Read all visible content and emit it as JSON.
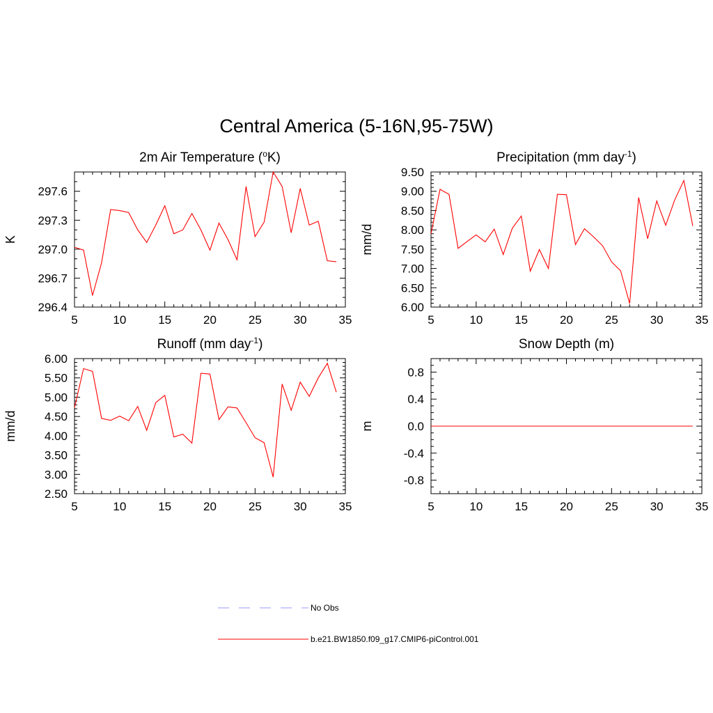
{
  "figure_title": "Central America (5-16N,95-75W)",
  "colors": {
    "model": "#ff0000",
    "obs": "#9999ff"
  },
  "legend": {
    "obs_label": "No Obs",
    "model_label": "b.e21.BW1850.f09_g17.CMIP6-piControl.001"
  },
  "chart_data": [
    {
      "type": "line",
      "title": "2m Air Temperature (",
      "title_sup": "o",
      "title_end": "K)",
      "ylabel": "K",
      "xlim": [
        5,
        35
      ],
      "ylim": [
        296.4,
        297.8
      ],
      "xticks": [
        5,
        10,
        15,
        20,
        25,
        30,
        35
      ],
      "xtick_labels": [
        "5",
        "10",
        "15",
        "20",
        "25",
        "30",
        "35"
      ],
      "yticks": [
        296.4,
        296.7,
        297.0,
        297.3,
        297.6
      ],
      "ytick_labels": [
        "296.4",
        "296.7",
        "297.0",
        "297.3",
        "297.6"
      ],
      "yminor": 0.1,
      "x": [
        5,
        6,
        7,
        8,
        9,
        10,
        11,
        12,
        13,
        14,
        15,
        16,
        17,
        18,
        19,
        20,
        21,
        22,
        23,
        24,
        25,
        26,
        27,
        28,
        29,
        30,
        31,
        32,
        33,
        34
      ],
      "series": [
        {
          "name": "b.e21.BW1850.f09_g17.CMIP6-piControl.001",
          "values": [
            297.02,
            296.99,
            296.52,
            296.86,
            297.41,
            297.4,
            297.38,
            297.2,
            297.07,
            297.25,
            297.45,
            297.16,
            297.2,
            297.37,
            297.2,
            296.99,
            297.27,
            297.1,
            296.89,
            297.65,
            297.13,
            297.28,
            297.8,
            297.65,
            297.17,
            297.63,
            297.25,
            297.29,
            296.88,
            296.87
          ]
        }
      ]
    },
    {
      "type": "line",
      "title": "Precipitation (mm day",
      "title_sup": "-1",
      "title_end": ")",
      "ylabel": "mm/d",
      "xlim": [
        5,
        35
      ],
      "ylim": [
        6.0,
        9.5
      ],
      "xticks": [
        5,
        10,
        15,
        20,
        25,
        30,
        35
      ],
      "xtick_labels": [
        "5",
        "10",
        "15",
        "20",
        "25",
        "30",
        "35"
      ],
      "yticks": [
        6.0,
        6.5,
        7.0,
        7.5,
        8.0,
        8.5,
        9.0,
        9.5
      ],
      "ytick_labels": [
        "6.00",
        "6.50",
        "7.00",
        "7.50",
        "8.00",
        "8.50",
        "9.00",
        "9.50"
      ],
      "yminor": 0.1,
      "x": [
        5,
        6,
        7,
        8,
        9,
        10,
        11,
        12,
        13,
        14,
        15,
        16,
        17,
        18,
        19,
        20,
        21,
        22,
        23,
        24,
        25,
        26,
        27,
        28,
        29,
        30,
        31,
        32,
        33,
        34
      ],
      "series": [
        {
          "name": "b.e21.BW1850.f09_g17.CMIP6-piControl.001",
          "values": [
            7.9,
            9.05,
            8.92,
            7.52,
            7.7,
            7.87,
            7.69,
            8.02,
            7.36,
            8.04,
            8.36,
            6.93,
            7.49,
            7.0,
            8.92,
            8.91,
            7.62,
            8.03,
            7.82,
            7.59,
            7.17,
            6.94,
            6.09,
            8.84,
            7.77,
            8.75,
            8.12,
            8.78,
            9.28,
            8.1
          ]
        }
      ]
    },
    {
      "type": "line",
      "title": "Runoff (mm day",
      "title_sup": "-1",
      "title_end": ")",
      "ylabel": "mm/d",
      "xlim": [
        5,
        35
      ],
      "ylim": [
        2.5,
        6.0
      ],
      "xticks": [
        5,
        10,
        15,
        20,
        25,
        30,
        35
      ],
      "xtick_labels": [
        "5",
        "10",
        "15",
        "20",
        "25",
        "30",
        "35"
      ],
      "yticks": [
        2.5,
        3.0,
        3.5,
        4.0,
        4.5,
        5.0,
        5.5,
        6.0
      ],
      "ytick_labels": [
        "2.50",
        "3.00",
        "3.50",
        "4.00",
        "4.50",
        "5.00",
        "5.50",
        "6.00"
      ],
      "yminor": 0.1,
      "x": [
        5,
        6,
        7,
        8,
        9,
        10,
        11,
        12,
        13,
        14,
        15,
        16,
        17,
        18,
        19,
        20,
        21,
        22,
        23,
        24,
        25,
        26,
        27,
        28,
        29,
        30,
        31,
        32,
        33,
        34
      ],
      "series": [
        {
          "name": "b.e21.BW1850.f09_g17.CMIP6-piControl.001",
          "values": [
            4.73,
            5.74,
            5.67,
            4.45,
            4.4,
            4.51,
            4.39,
            4.76,
            4.14,
            4.86,
            5.05,
            3.97,
            4.04,
            3.81,
            5.62,
            5.6,
            4.42,
            4.75,
            4.72,
            4.34,
            3.95,
            3.82,
            2.93,
            5.34,
            4.66,
            5.39,
            5.02,
            5.5,
            5.88,
            5.13
          ]
        }
      ]
    },
    {
      "type": "line",
      "title": "Snow Depth (m)",
      "title_sup": "",
      "title_end": "",
      "ylabel": "m",
      "xlim": [
        5,
        35
      ],
      "ylim": [
        -1.0,
        1.0
      ],
      "xticks": [
        5,
        10,
        15,
        20,
        25,
        30,
        35
      ],
      "xtick_labels": [
        "5",
        "10",
        "15",
        "20",
        "25",
        "30",
        "35"
      ],
      "yticks": [
        -0.8,
        -0.4,
        0.0,
        0.4,
        0.8
      ],
      "ytick_labels": [
        "-0.8",
        "-0.4",
        "0.0",
        "0.4",
        "0.8"
      ],
      "yminor": 0.1,
      "x": [
        5,
        6,
        7,
        8,
        9,
        10,
        11,
        12,
        13,
        14,
        15,
        16,
        17,
        18,
        19,
        20,
        21,
        22,
        23,
        24,
        25,
        26,
        27,
        28,
        29,
        30,
        31,
        32,
        33,
        34
      ],
      "series": [
        {
          "name": "b.e21.BW1850.f09_g17.CMIP6-piControl.001",
          "values": [
            0,
            0,
            0,
            0,
            0,
            0,
            0,
            0,
            0,
            0,
            0,
            0,
            0,
            0,
            0,
            0,
            0,
            0,
            0,
            0,
            0,
            0,
            0,
            0,
            0,
            0,
            0,
            0,
            0,
            0
          ]
        }
      ]
    }
  ]
}
